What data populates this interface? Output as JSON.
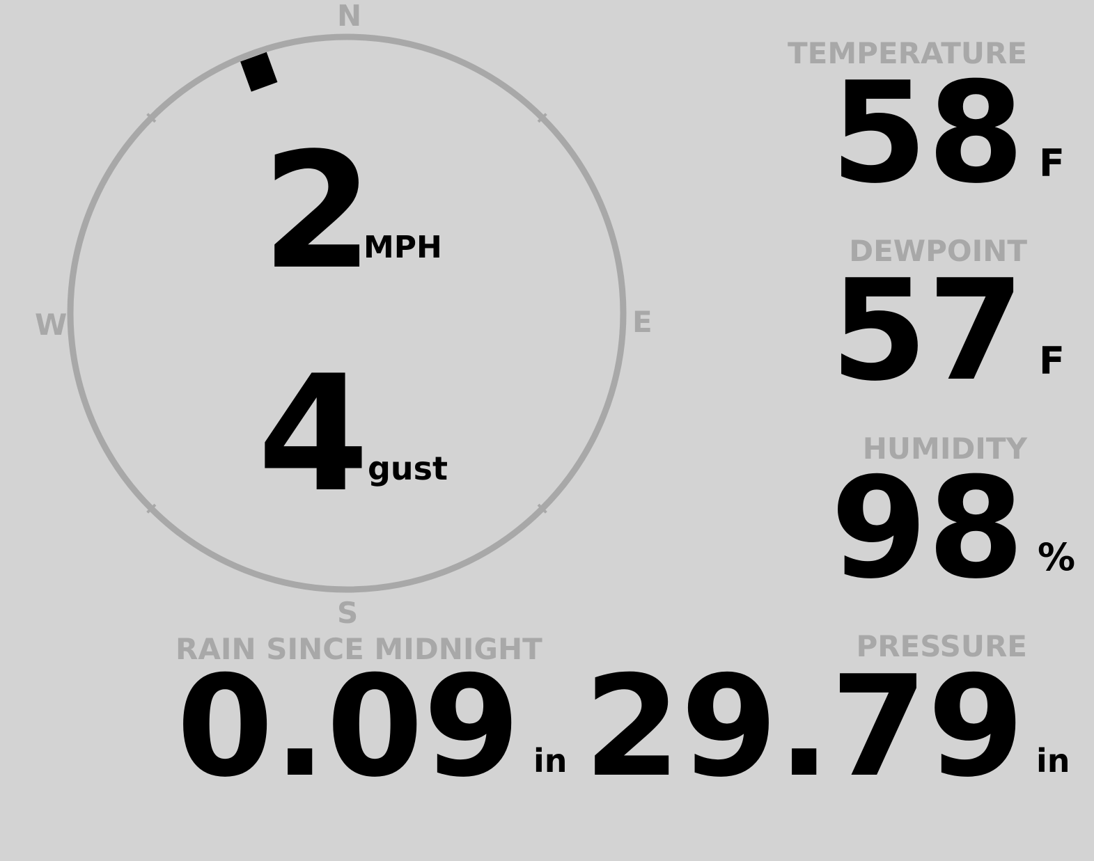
{
  "wind": {
    "speed": "2",
    "speed_unit": "MPH",
    "gust": "4",
    "gust_label": "gust",
    "direction_deg": 340,
    "cardinals": {
      "n": "N",
      "e": "E",
      "s": "S",
      "w": "W"
    }
  },
  "temperature": {
    "label": "TEMPERATURE",
    "value": "58",
    "unit": "F"
  },
  "dewpoint": {
    "label": "DEWPOINT",
    "value": "57",
    "unit": "F"
  },
  "humidity": {
    "label": "HUMIDITY",
    "value": "98",
    "unit": "%"
  },
  "rain": {
    "label": "RAIN SINCE MIDNIGHT",
    "value": "0.09",
    "unit": "in"
  },
  "pressure": {
    "label": "PRESSURE",
    "value": "29.79",
    "unit": "in"
  },
  "colors": {
    "background": "#d3d3d3",
    "label": "#a8a8a8",
    "value": "#000000"
  }
}
